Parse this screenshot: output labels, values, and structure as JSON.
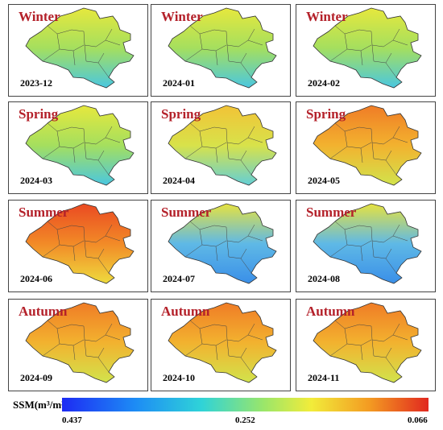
{
  "panels": [
    {
      "season": "Winter",
      "date": "2023-12",
      "theme": "cool"
    },
    {
      "season": "Winter",
      "date": "2024-01",
      "theme": "cool"
    },
    {
      "season": "Winter",
      "date": "2024-02",
      "theme": "cool"
    },
    {
      "season": "Spring",
      "date": "2024-03",
      "theme": "cool"
    },
    {
      "season": "Spring",
      "date": "2024-04",
      "theme": "mid"
    },
    {
      "season": "Spring",
      "date": "2024-05",
      "theme": "warm"
    },
    {
      "season": "Summer",
      "date": "2024-06",
      "theme": "hot"
    },
    {
      "season": "Summer",
      "date": "2024-07",
      "theme": "wet"
    },
    {
      "season": "Summer",
      "date": "2024-08",
      "theme": "wet"
    },
    {
      "season": "Autumn",
      "date": "2024-09",
      "theme": "warm"
    },
    {
      "season": "Autumn",
      "date": "2024-10",
      "theme": "warm"
    },
    {
      "season": "Autumn",
      "date": "2024-11",
      "theme": "warm"
    }
  ],
  "legend": {
    "label": "SSM(m³/m³)",
    "min": "0.437",
    "mid": "0.252",
    "max": "0.066",
    "colors": [
      "#1d2bf3",
      "#2fd3d8",
      "#f2ec3a",
      "#e1281f"
    ]
  },
  "themes": {
    "cool": {
      "top": "#e6e83d",
      "mid": "#a5df5e",
      "bottom": "#4ac7e0"
    },
    "mid": {
      "top": "#f2c336",
      "mid": "#d8e24a",
      "bottom": "#63cfd6"
    },
    "warm": {
      "top": "#f07c26",
      "mid": "#f2b22f",
      "bottom": "#d2e34c"
    },
    "hot": {
      "top": "#ea4a22",
      "mid": "#f28a27",
      "bottom": "#eedb3e"
    },
    "wet": {
      "top": "#e6e23f",
      "mid": "#5fb9e6",
      "bottom": "#3a8fe8"
    }
  }
}
